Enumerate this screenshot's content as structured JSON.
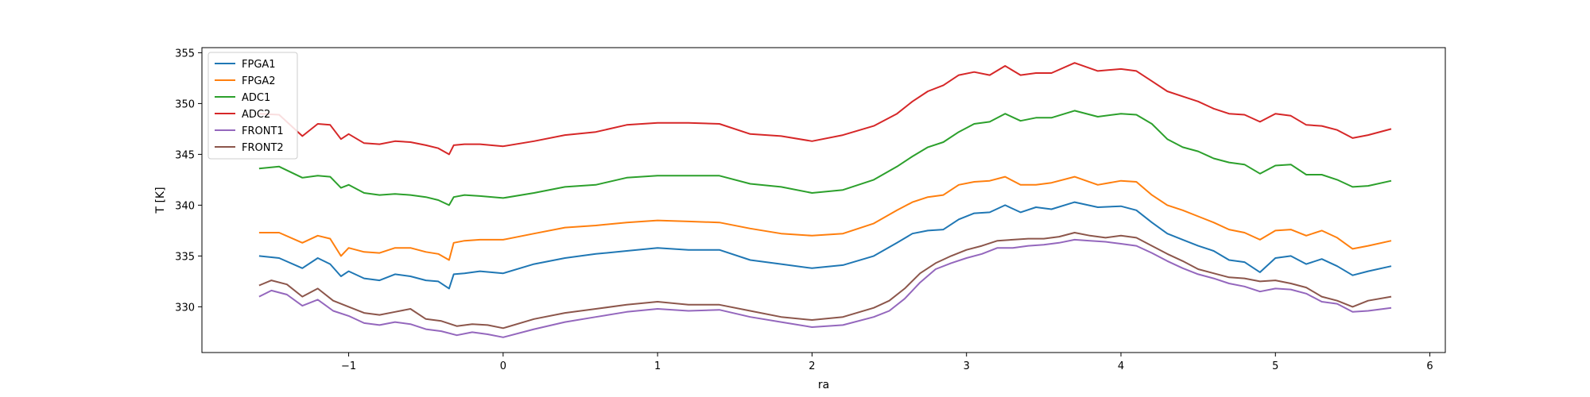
{
  "chart_data": {
    "type": "line",
    "title": "",
    "xlabel": "ra",
    "ylabel": "T [K]",
    "xlim": [
      -1.95,
      6.1
    ],
    "ylim": [
      325.5,
      355.5
    ],
    "xticks": [
      -1,
      0,
      1,
      2,
      3,
      4,
      5,
      6
    ],
    "yticks": [
      330,
      335,
      340,
      345,
      350,
      355
    ],
    "grid": false,
    "legend_position": "upper-left",
    "series": [
      {
        "name": "FPGA1",
        "color": "#1f77b4",
        "x": [
          -1.58,
          -1.45,
          -1.3,
          -1.2,
          -1.12,
          -1.05,
          -1.0,
          -0.9,
          -0.8,
          -0.7,
          -0.6,
          -0.5,
          -0.42,
          -0.35,
          -0.32,
          -0.25,
          -0.15,
          0.0,
          0.2,
          0.4,
          0.6,
          0.8,
          1.0,
          1.2,
          1.4,
          1.6,
          1.8,
          2.0,
          2.2,
          2.4,
          2.55,
          2.65,
          2.75,
          2.85,
          2.95,
          3.05,
          3.15,
          3.25,
          3.35,
          3.45,
          3.55,
          3.7,
          3.85,
          4.0,
          4.1,
          4.2,
          4.3,
          4.4,
          4.5,
          4.6,
          4.7,
          4.8,
          4.9,
          5.0,
          5.1,
          5.2,
          5.3,
          5.4,
          5.5,
          5.6,
          5.75
        ],
        "y": [
          335.0,
          334.8,
          333.8,
          334.8,
          334.2,
          333.0,
          333.5,
          332.8,
          332.6,
          333.2,
          333.0,
          332.6,
          332.5,
          331.8,
          333.2,
          333.3,
          333.5,
          333.3,
          334.2,
          334.8,
          335.2,
          335.5,
          335.8,
          335.6,
          335.6,
          334.6,
          334.2,
          333.8,
          334.1,
          335.0,
          336.3,
          337.2,
          337.5,
          337.6,
          338.6,
          339.2,
          339.3,
          340.0,
          339.3,
          339.8,
          339.6,
          340.3,
          339.8,
          339.9,
          339.5,
          338.3,
          337.2,
          336.6,
          336.0,
          335.5,
          334.6,
          334.4,
          333.4,
          334.8,
          335.0,
          334.2,
          334.7,
          334.0,
          333.1,
          333.5,
          334.0
        ]
      },
      {
        "name": "FPGA2",
        "color": "#ff7f0e",
        "x": [
          -1.58,
          -1.45,
          -1.3,
          -1.2,
          -1.12,
          -1.05,
          -1.0,
          -0.9,
          -0.8,
          -0.7,
          -0.6,
          -0.5,
          -0.42,
          -0.35,
          -0.32,
          -0.25,
          -0.15,
          0.0,
          0.2,
          0.4,
          0.6,
          0.8,
          1.0,
          1.2,
          1.4,
          1.6,
          1.8,
          2.0,
          2.2,
          2.4,
          2.55,
          2.65,
          2.75,
          2.85,
          2.95,
          3.05,
          3.15,
          3.25,
          3.35,
          3.45,
          3.55,
          3.7,
          3.85,
          4.0,
          4.1,
          4.2,
          4.3,
          4.4,
          4.5,
          4.6,
          4.7,
          4.8,
          4.9,
          5.0,
          5.1,
          5.2,
          5.3,
          5.4,
          5.5,
          5.6,
          5.75
        ],
        "y": [
          337.3,
          337.3,
          336.3,
          337.0,
          336.7,
          335.0,
          335.8,
          335.4,
          335.3,
          335.8,
          335.8,
          335.4,
          335.2,
          334.6,
          336.3,
          336.5,
          336.6,
          336.6,
          337.2,
          337.8,
          338.0,
          338.3,
          338.5,
          338.4,
          338.3,
          337.7,
          337.2,
          337.0,
          337.2,
          338.2,
          339.5,
          340.3,
          340.8,
          341.0,
          342.0,
          342.3,
          342.4,
          342.8,
          342.0,
          342.0,
          342.2,
          342.8,
          342.0,
          342.4,
          342.3,
          341.0,
          340.0,
          339.5,
          338.9,
          338.3,
          337.6,
          337.3,
          336.6,
          337.5,
          337.6,
          337.0,
          337.5,
          336.8,
          335.7,
          336.0,
          336.5
        ]
      },
      {
        "name": "ADC1",
        "color": "#2ca02c",
        "x": [
          -1.58,
          -1.45,
          -1.3,
          -1.2,
          -1.12,
          -1.05,
          -1.0,
          -0.9,
          -0.8,
          -0.7,
          -0.6,
          -0.5,
          -0.42,
          -0.35,
          -0.32,
          -0.25,
          -0.15,
          0.0,
          0.2,
          0.4,
          0.6,
          0.8,
          1.0,
          1.2,
          1.4,
          1.6,
          1.8,
          2.0,
          2.2,
          2.4,
          2.55,
          2.65,
          2.75,
          2.85,
          2.95,
          3.05,
          3.15,
          3.25,
          3.35,
          3.45,
          3.55,
          3.7,
          3.85,
          4.0,
          4.1,
          4.2,
          4.3,
          4.4,
          4.5,
          4.6,
          4.7,
          4.8,
          4.9,
          5.0,
          5.1,
          5.2,
          5.3,
          5.4,
          5.5,
          5.6,
          5.75
        ],
        "y": [
          343.6,
          343.8,
          342.7,
          342.9,
          342.8,
          341.7,
          342.0,
          341.2,
          341.0,
          341.1,
          341.0,
          340.8,
          340.5,
          340.0,
          340.8,
          341.0,
          340.9,
          340.7,
          341.2,
          341.8,
          342.0,
          342.7,
          342.9,
          342.9,
          342.9,
          342.1,
          341.8,
          341.2,
          341.5,
          342.5,
          343.8,
          344.8,
          345.7,
          346.2,
          347.2,
          348.0,
          348.2,
          349.0,
          348.3,
          348.6,
          348.6,
          349.3,
          348.7,
          349.0,
          348.9,
          348.0,
          346.5,
          345.7,
          345.3,
          344.6,
          344.2,
          344.0,
          343.1,
          343.9,
          344.0,
          343.0,
          343.0,
          342.5,
          341.8,
          341.9,
          342.4
        ]
      },
      {
        "name": "ADC2",
        "color": "#d62728",
        "x": [
          -1.58,
          -1.45,
          -1.3,
          -1.2,
          -1.12,
          -1.05,
          -1.0,
          -0.9,
          -0.8,
          -0.7,
          -0.6,
          -0.5,
          -0.42,
          -0.35,
          -0.32,
          -0.25,
          -0.15,
          0.0,
          0.2,
          0.4,
          0.6,
          0.8,
          1.0,
          1.2,
          1.4,
          1.6,
          1.8,
          2.0,
          2.2,
          2.4,
          2.55,
          2.65,
          2.75,
          2.85,
          2.95,
          3.05,
          3.15,
          3.25,
          3.35,
          3.45,
          3.55,
          3.7,
          3.85,
          4.0,
          4.1,
          4.2,
          4.3,
          4.4,
          4.5,
          4.6,
          4.7,
          4.8,
          4.9,
          5.0,
          5.1,
          5.2,
          5.3,
          5.4,
          5.5,
          5.6,
          5.75
        ],
        "y": [
          349.0,
          348.9,
          346.8,
          348.0,
          347.9,
          346.5,
          347.0,
          346.1,
          346.0,
          346.3,
          346.2,
          345.9,
          345.6,
          345.0,
          345.9,
          346.0,
          346.0,
          345.8,
          346.3,
          346.9,
          347.2,
          347.9,
          348.1,
          348.1,
          348.0,
          347.0,
          346.8,
          346.3,
          346.9,
          347.8,
          349.0,
          350.2,
          351.2,
          351.8,
          352.8,
          353.1,
          352.8,
          353.7,
          352.8,
          353.0,
          353.0,
          354.0,
          353.2,
          353.4,
          353.2,
          352.2,
          351.2,
          350.7,
          350.2,
          349.5,
          349.0,
          348.9,
          348.2,
          349.0,
          348.8,
          347.9,
          347.8,
          347.4,
          346.6,
          346.9,
          347.5
        ]
      },
      {
        "name": "FRONT1",
        "color": "#9467bd",
        "x": [
          -1.58,
          -1.5,
          -1.4,
          -1.3,
          -1.2,
          -1.1,
          -1.0,
          -0.9,
          -0.8,
          -0.7,
          -0.6,
          -0.5,
          -0.4,
          -0.3,
          -0.2,
          -0.1,
          0.0,
          0.2,
          0.4,
          0.6,
          0.8,
          1.0,
          1.2,
          1.4,
          1.6,
          1.8,
          2.0,
          2.2,
          2.4,
          2.5,
          2.6,
          2.7,
          2.8,
          2.9,
          3.0,
          3.1,
          3.2,
          3.3,
          3.4,
          3.5,
          3.6,
          3.7,
          3.8,
          3.9,
          4.0,
          4.1,
          4.2,
          4.3,
          4.4,
          4.5,
          4.6,
          4.7,
          4.8,
          4.9,
          5.0,
          5.1,
          5.2,
          5.3,
          5.4,
          5.5,
          5.6,
          5.75
        ],
        "y": [
          331.0,
          331.6,
          331.2,
          330.1,
          330.7,
          329.6,
          329.1,
          328.4,
          328.2,
          328.5,
          328.3,
          327.8,
          327.6,
          327.2,
          327.5,
          327.3,
          327.0,
          327.8,
          328.5,
          329.0,
          329.5,
          329.8,
          329.6,
          329.7,
          329.0,
          328.5,
          328.0,
          328.2,
          329.0,
          329.6,
          330.8,
          332.4,
          333.7,
          334.3,
          334.8,
          335.2,
          335.8,
          335.8,
          336.0,
          336.1,
          336.3,
          336.6,
          336.5,
          336.4,
          336.2,
          336.0,
          335.3,
          334.5,
          333.8,
          333.2,
          332.8,
          332.3,
          332.0,
          331.5,
          331.8,
          331.7,
          331.3,
          330.5,
          330.3,
          329.5,
          329.6,
          329.9
        ]
      },
      {
        "name": "FRONT2",
        "color": "#8c564b",
        "x": [
          -1.58,
          -1.5,
          -1.4,
          -1.3,
          -1.2,
          -1.1,
          -1.0,
          -0.9,
          -0.8,
          -0.7,
          -0.6,
          -0.5,
          -0.4,
          -0.3,
          -0.2,
          -0.1,
          0.0,
          0.2,
          0.4,
          0.6,
          0.8,
          1.0,
          1.2,
          1.4,
          1.6,
          1.8,
          2.0,
          2.2,
          2.4,
          2.5,
          2.6,
          2.7,
          2.8,
          2.9,
          3.0,
          3.1,
          3.2,
          3.3,
          3.4,
          3.5,
          3.6,
          3.7,
          3.8,
          3.9,
          4.0,
          4.1,
          4.2,
          4.3,
          4.4,
          4.5,
          4.6,
          4.7,
          4.8,
          4.9,
          5.0,
          5.1,
          5.2,
          5.3,
          5.4,
          5.5,
          5.6,
          5.75
        ],
        "y": [
          332.1,
          332.6,
          332.2,
          331.0,
          331.8,
          330.6,
          330.0,
          329.4,
          329.2,
          329.5,
          329.8,
          328.8,
          328.6,
          328.1,
          328.3,
          328.2,
          327.9,
          328.8,
          329.4,
          329.8,
          330.2,
          330.5,
          330.2,
          330.2,
          329.6,
          329.0,
          328.7,
          329.0,
          329.9,
          330.6,
          331.8,
          333.3,
          334.3,
          335.0,
          335.6,
          336.0,
          336.5,
          336.6,
          336.7,
          336.7,
          336.9,
          337.3,
          337.0,
          336.8,
          337.0,
          336.8,
          336.0,
          335.2,
          334.5,
          333.7,
          333.3,
          332.9,
          332.8,
          332.5,
          332.6,
          332.3,
          331.9,
          331.0,
          330.6,
          330.0,
          330.6,
          331.0
        ]
      }
    ]
  }
}
